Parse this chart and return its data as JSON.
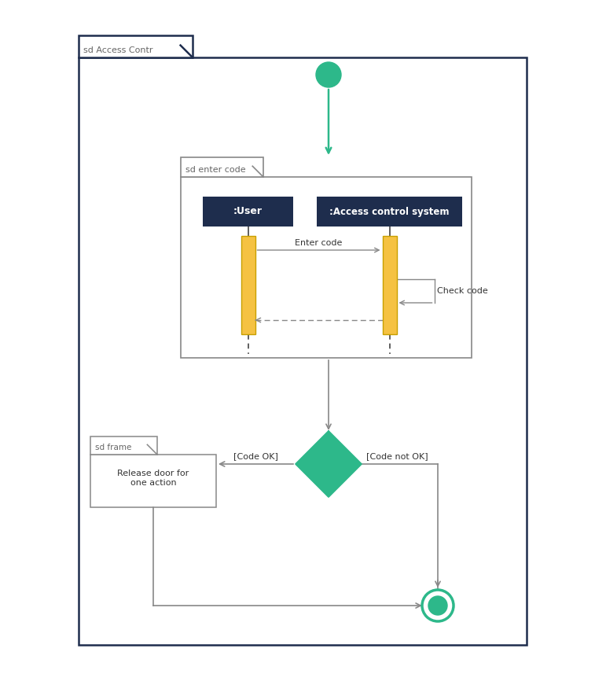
{
  "teal": "#2db88a",
  "dark_navy": "#1e2d4d",
  "gold": "#f5c242",
  "gold_edge": "#c8a000",
  "gray": "#888888",
  "dark_line": "#333333",
  "outer_frame_label": "sd Access Contr",
  "inner_frame_label": "sd enter code",
  "sd_frame_label": "sd frame",
  "user_label": ":User",
  "acs_label": ":Access control system",
  "enter_code_label": "Enter code",
  "check_code_label": "Check code",
  "code_ok_label": "[Code OK]",
  "code_not_ok_label": "[Code not OK]",
  "release_label": "Release door for\none action"
}
